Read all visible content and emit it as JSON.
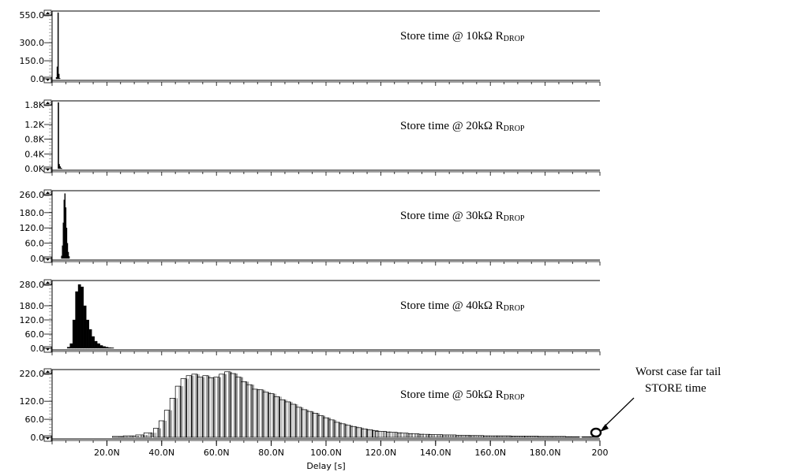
{
  "chart_data": {
    "type": "bar",
    "xlabel": "Delay [s]",
    "xlim": [
      0,
      200
    ],
    "x_ticks": [
      "20.0N",
      "40.0N",
      "60.0N",
      "80.0N",
      "100.0N",
      "120.0N",
      "140.0N",
      "160.0N",
      "180.0N",
      "200"
    ],
    "x_tick_values": [
      20,
      40,
      60,
      80,
      100,
      120,
      140,
      160,
      180,
      200
    ],
    "panels": [
      {
        "title": "Store time @ 10kΩ R",
        "title_sub": "DROP",
        "ylim": [
          0,
          550
        ],
        "y_ticks": [
          "550.0",
          "300.0",
          "150.0",
          "0.0"
        ],
        "y_tick_values": [
          550,
          300,
          150,
          0
        ],
        "bins": [
          [
            1.6,
            12
          ],
          [
            1.9,
            100
          ],
          [
            2.2,
            550
          ],
          [
            2.5,
            40
          ],
          [
            2.8,
            5
          ]
        ]
      },
      {
        "title": "Store time @ 20kΩ R",
        "title_sub": "DROP",
        "ylim": [
          0,
          1800
        ],
        "y_ticks": [
          "1.8K",
          "1.2K",
          "0.8K",
          "0.4K",
          "0.0K"
        ],
        "y_tick_values": [
          1800,
          1200,
          800,
          400,
          0
        ],
        "bins": [
          [
            2.3,
            1800
          ],
          [
            2.6,
            120
          ],
          [
            2.9,
            60
          ],
          [
            3.2,
            20
          ],
          [
            3.5,
            8
          ]
        ]
      },
      {
        "title": "Store time @ 30kΩ R",
        "title_sub": "DROP",
        "ylim": [
          0,
          260
        ],
        "y_ticks": [
          "260.0",
          "180.0",
          "120.0",
          "60.0",
          "0.0"
        ],
        "y_tick_values": [
          260,
          180,
          120,
          60,
          0
        ],
        "bins": [
          [
            3.5,
            10
          ],
          [
            3.8,
            50
          ],
          [
            4.1,
            140
          ],
          [
            4.4,
            230
          ],
          [
            4.7,
            255
          ],
          [
            5.0,
            200
          ],
          [
            5.3,
            120
          ],
          [
            5.6,
            60
          ],
          [
            5.9,
            25
          ],
          [
            6.2,
            8
          ]
        ]
      },
      {
        "title": "Store time @ 40kΩ R",
        "title_sub": "DROP",
        "ylim": [
          0,
          280
        ],
        "y_ticks": [
          "280.0",
          "180.0",
          "120.0",
          "60.0",
          "0.0"
        ],
        "y_tick_values": [
          280,
          180,
          120,
          60,
          0
        ],
        "bins": [
          [
            6.0,
            5
          ],
          [
            7.0,
            20
          ],
          [
            8.0,
            120
          ],
          [
            9.0,
            240
          ],
          [
            10.0,
            270
          ],
          [
            11.0,
            260
          ],
          [
            12.0,
            180
          ],
          [
            13.0,
            120
          ],
          [
            14.0,
            80
          ],
          [
            15.0,
            50
          ],
          [
            16.0,
            30
          ],
          [
            17.0,
            20
          ],
          [
            18.0,
            12
          ],
          [
            19.0,
            8
          ],
          [
            20.0,
            5
          ],
          [
            21.0,
            3
          ],
          [
            22.0,
            2
          ]
        ]
      },
      {
        "title": "Store time @ 50kΩ R",
        "title_sub": "DROP",
        "ylim": [
          0,
          220
        ],
        "y_ticks": [
          "220.0",
          "120.0",
          "60.0",
          "0.0"
        ],
        "y_tick_values": [
          220,
          120,
          60,
          0
        ],
        "bins": [
          [
            24,
            3
          ],
          [
            28,
            5
          ],
          [
            32,
            8
          ],
          [
            35,
            15
          ],
          [
            38,
            30
          ],
          [
            40,
            55
          ],
          [
            42,
            90
          ],
          [
            44,
            130
          ],
          [
            46,
            170
          ],
          [
            48,
            195
          ],
          [
            50,
            205
          ],
          [
            52,
            210
          ],
          [
            54,
            200
          ],
          [
            56,
            205
          ],
          [
            58,
            198
          ],
          [
            60,
            200
          ],
          [
            62,
            210
          ],
          [
            64,
            218
          ],
          [
            66,
            212
          ],
          [
            68,
            200
          ],
          [
            70,
            185
          ],
          [
            72,
            175
          ],
          [
            74,
            160
          ],
          [
            76,
            158
          ],
          [
            78,
            150
          ],
          [
            80,
            145
          ],
          [
            82,
            135
          ],
          [
            84,
            125
          ],
          [
            86,
            118
          ],
          [
            88,
            110
          ],
          [
            90,
            100
          ],
          [
            92,
            92
          ],
          [
            94,
            86
          ],
          [
            96,
            80
          ],
          [
            98,
            72
          ],
          [
            100,
            65
          ],
          [
            102,
            58
          ],
          [
            104,
            50
          ],
          [
            106,
            45
          ],
          [
            108,
            40
          ],
          [
            110,
            36
          ],
          [
            112,
            32
          ],
          [
            114,
            28
          ],
          [
            116,
            25
          ],
          [
            118,
            22
          ],
          [
            120,
            20
          ],
          [
            124,
            17
          ],
          [
            128,
            14
          ],
          [
            132,
            12
          ],
          [
            136,
            10
          ],
          [
            140,
            9
          ],
          [
            145,
            8
          ],
          [
            150,
            7
          ],
          [
            155,
            6
          ],
          [
            160,
            5
          ],
          [
            165,
            5
          ],
          [
            170,
            4
          ],
          [
            175,
            4
          ],
          [
            180,
            3
          ],
          [
            185,
            3
          ],
          [
            190,
            2
          ],
          [
            195,
            2
          ],
          [
            198,
            2
          ]
        ]
      }
    ],
    "annotation": [
      "Worst case far tail",
      "STORE time"
    ]
  }
}
